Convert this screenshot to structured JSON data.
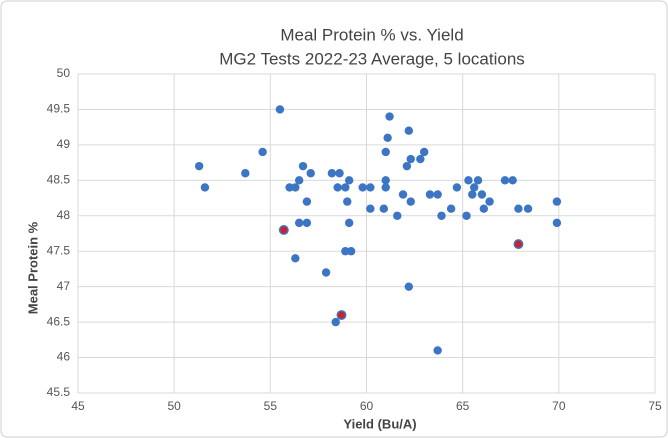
{
  "chart_data": {
    "type": "scatter",
    "title": "Meal Protein % vs. Yield",
    "subtitle": "MG2 Tests 2022-23 Average, 5 locations",
    "x_label": "Yield (Bu/A)",
    "y_label": "Meal Protein %",
    "color": "#3b75c4",
    "grid": true,
    "xlim": [
      45,
      75
    ],
    "xticks": [
      45,
      50,
      55,
      60,
      65,
      70,
      75
    ],
    "ylim": [
      45.5,
      50
    ],
    "yticks": [
      45.5,
      46,
      46.5,
      47,
      47.5,
      48,
      48.5,
      49,
      49.5,
      50
    ],
    "x": [
      51.3,
      51.6,
      53.7,
      54.6,
      55.5,
      55.7,
      56.0,
      56.3,
      56.5,
      56.3,
      56.5,
      56.7,
      56.9,
      56.9,
      57.1,
      57.9,
      58.2,
      58.6,
      58.5,
      58.9,
      59.1,
      59.0,
      59.1,
      58.9,
      59.2,
      58.4,
      58.7,
      59.8,
      60.2,
      60.2,
      60.9,
      61.0,
      61.0,
      61.0,
      61.1,
      61.2,
      61.6,
      61.9,
      62.1,
      62.2,
      62.2,
      62.3,
      62.3,
      62.8,
      63.0,
      63.3,
      63.7,
      63.7,
      63.9,
      64.4,
      64.7,
      65.2,
      65.3,
      65.5,
      65.6,
      65.8,
      66.0,
      66.1,
      66.4,
      67.2,
      67.6,
      67.9,
      67.9,
      68.4,
      69.9,
      69.9
    ],
    "values": [
      48.7,
      48.4,
      48.6,
      48.9,
      49.5,
      47.8,
      48.4,
      48.4,
      48.5,
      47.4,
      47.9,
      48.7,
      48.2,
      47.9,
      48.6,
      47.2,
      48.6,
      48.6,
      48.4,
      48.4,
      48.5,
      48.2,
      47.9,
      47.5,
      47.5,
      46.5,
      46.6,
      48.4,
      48.4,
      48.1,
      48.1,
      48.5,
      48.4,
      48.9,
      49.1,
      49.4,
      48.0,
      48.3,
      48.7,
      47.0,
      49.2,
      48.8,
      48.2,
      48.8,
      48.9,
      48.3,
      48.3,
      46.1,
      48.0,
      48.1,
      48.4,
      48.0,
      48.5,
      48.3,
      48.4,
      48.5,
      48.3,
      48.1,
      48.2,
      48.5,
      48.5,
      48.1,
      47.6,
      48.1,
      48.2,
      47.9
    ],
    "point_colors": [
      "#3b75c4",
      "#3b75c4",
      "#3b75c4",
      "#3b75c4",
      "#3b75c4",
      "#d0202a",
      "#3b75c4",
      "#3b75c4",
      "#3b75c4",
      "#3b75c4",
      "#3b75c4",
      "#3b75c4",
      "#3b75c4",
      "#3b75c4",
      "#3b75c4",
      "#3b75c4",
      "#3b75c4",
      "#3b75c4",
      "#3b75c4",
      "#3b75c4",
      "#3b75c4",
      "#3b75c4",
      "#3b75c4",
      "#3b75c4",
      "#3b75c4",
      "#3b75c4",
      "#d0202a",
      "#3b75c4",
      "#3b75c4",
      "#3b75c4",
      "#3b75c4",
      "#3b75c4",
      "#3b75c4",
      "#3b75c4",
      "#3b75c4",
      "#3b75c4",
      "#3b75c4",
      "#3b75c4",
      "#3b75c4",
      "#3b75c4",
      "#3b75c4",
      "#3b75c4",
      "#3b75c4",
      "#3b75c4",
      "#3b75c4",
      "#3b75c4",
      "#3b75c4",
      "#3b75c4",
      "#3b75c4",
      "#3b75c4",
      "#3b75c4",
      "#3b75c4",
      "#3b75c4",
      "#3b75c4",
      "#3b75c4",
      "#3b75c4",
      "#3b75c4",
      "#3b75c4",
      "#3b75c4",
      "#3b75c4",
      "#3b75c4",
      "#3b75c4",
      "#d0202a",
      "#3b75c4",
      "#3b75c4",
      "#3b75c4"
    ]
  }
}
